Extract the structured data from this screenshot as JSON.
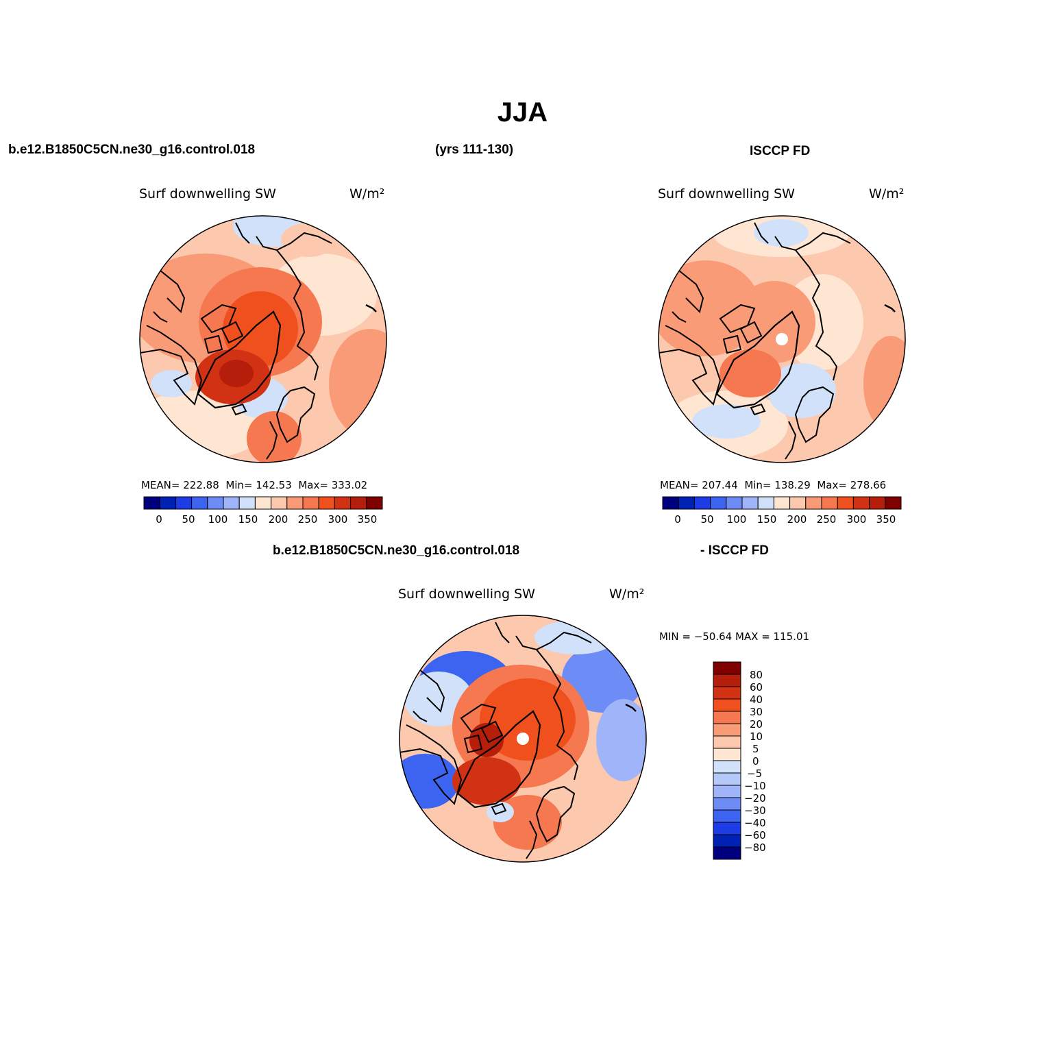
{
  "title": "JJA",
  "top_left_header": "b.e12.B1850C5CN.ne30_g16.control.018",
  "top_mid_header": "(yrs 111-130)",
  "top_right_header": "ISCCP FD",
  "bottom_header_left": "b.e12.B1850C5CN.ne30_g16.control.018",
  "bottom_header_right": "- ISCCP FD",
  "panels": [
    {
      "variable": "Surf downwelling SW",
      "units": "W/m²",
      "stats": {
        "mean_label": "MEAN=",
        "mean": "222.88",
        "min_label": "Min=",
        "min": "142.53",
        "max_label": "Max=",
        "max": "333.02"
      },
      "colorbar_ticks": [
        "0",
        "50",
        "100",
        "150",
        "200",
        "250",
        "300",
        "350"
      ]
    },
    {
      "variable": "Surf downwelling SW",
      "units": "W/m²",
      "stats": {
        "mean_label": "MEAN=",
        "mean": "207.44",
        "min_label": "Min=",
        "min": "138.29",
        "max_label": "Max=",
        "max": "278.66"
      },
      "colorbar_ticks": [
        "0",
        "50",
        "100",
        "150",
        "200",
        "250",
        "300",
        "350"
      ]
    },
    {
      "variable": "Surf downwelling SW",
      "units": "W/m²",
      "minmax_text": "MIN = −50.64 MAX = 115.01",
      "colorbar_ticks": [
        "80",
        "60",
        "40",
        "30",
        "20",
        "10",
        "5",
        "0",
        "−5",
        "−10",
        "−20",
        "−30",
        "−40",
        "−60",
        "−80"
      ]
    }
  ],
  "colors": {
    "abs_scale": [
      "#00007f",
      "#0022b4",
      "#1e3ce6",
      "#3c64f0",
      "#6e8cf5",
      "#a0b4fa",
      "#d2e1fa",
      "#ffe6d2",
      "#fcc8ae",
      "#fa9b78",
      "#f57850",
      "#f0501e",
      "#d23214",
      "#b41e0a",
      "#7f0000"
    ],
    "diff_scale": [
      "#7f0000",
      "#b41e0a",
      "#d23214",
      "#f0501e",
      "#f57850",
      "#fa9b78",
      "#fcc8ae",
      "#ffe6d2",
      "#d2e1fa",
      "#b4c8fa",
      "#a0b4fa",
      "#6e8cf5",
      "#3c64f0",
      "#1e3ce6",
      "#0022b4",
      "#00007f"
    ]
  }
}
